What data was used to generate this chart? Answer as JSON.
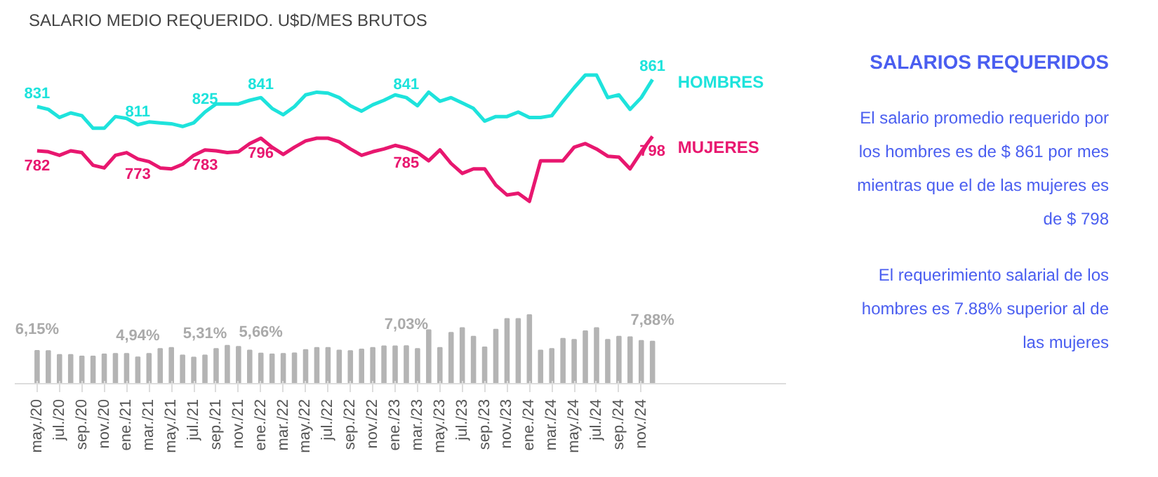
{
  "chart_data": [
    {
      "type": "line",
      "title": "SALARIO MEDIO REQUERIDO. U$D/MES BRUTOS",
      "tick_labels": false,
      "grid": false,
      "marker": "none",
      "line_style": "solid",
      "series": [
        {
          "name": "HOMBRES",
          "color": "#1ee3dc",
          "values": [
            831,
            828,
            819,
            824,
            821,
            807,
            807,
            820,
            818,
            811,
            814,
            813,
            812,
            809,
            813,
            825,
            834,
            834,
            834,
            838,
            841,
            829,
            822,
            831,
            844,
            847,
            846,
            841,
            832,
            826,
            833,
            838,
            844,
            841,
            832,
            847,
            837,
            841,
            835,
            829,
            815,
            820,
            820,
            825,
            819,
            819,
            821,
            837,
            852,
            866,
            866,
            841,
            844,
            828,
            841,
            861
          ],
          "value_labels": [
            "831",
            null,
            null,
            null,
            null,
            null,
            null,
            null,
            null,
            "811",
            null,
            null,
            null,
            null,
            null,
            "825",
            null,
            null,
            null,
            null,
            "841",
            null,
            null,
            null,
            null,
            null,
            null,
            null,
            null,
            null,
            null,
            null,
            null,
            "841",
            null,
            null,
            null,
            null,
            null,
            null,
            null,
            null,
            null,
            null,
            null,
            null,
            null,
            null,
            null,
            null,
            null,
            null,
            null,
            null,
            null,
            "861"
          ]
        },
        {
          "name": "MUJERES",
          "color": "#e8176f",
          "values": [
            782,
            781,
            777,
            782,
            780,
            766,
            763,
            777,
            780,
            773,
            770,
            763,
            762,
            767,
            777,
            783,
            782,
            780,
            781,
            790,
            796,
            786,
            778,
            786,
            793,
            796,
            796,
            792,
            784,
            777,
            781,
            784,
            788,
            785,
            780,
            771,
            783,
            768,
            757,
            762,
            762,
            744,
            733,
            735,
            726,
            771,
            771,
            771,
            786,
            790,
            784,
            776,
            775,
            762,
            781,
            798
          ],
          "value_labels": [
            "782",
            null,
            null,
            null,
            null,
            null,
            null,
            null,
            null,
            "773",
            null,
            null,
            null,
            null,
            null,
            "783",
            null,
            null,
            null,
            null,
            "796",
            null,
            null,
            null,
            null,
            null,
            null,
            null,
            null,
            null,
            null,
            null,
            null,
            "785",
            null,
            null,
            null,
            null,
            null,
            null,
            null,
            null,
            null,
            null,
            null,
            null,
            null,
            null,
            null,
            null,
            null,
            null,
            null,
            null,
            null,
            "798"
          ]
        }
      ]
    },
    {
      "type": "bar",
      "grid": false,
      "tick_labels": "x",
      "categories": [
        "may./20",
        null,
        "jul./20",
        null,
        "sep./20",
        null,
        "nov./20",
        null,
        "ene./21",
        null,
        "mar./21",
        null,
        "may./21",
        null,
        "jul./21",
        null,
        "sep./21",
        null,
        "nov./21",
        null,
        "ene./22",
        null,
        "mar./22",
        null,
        "may./22",
        null,
        "jul./22",
        null,
        "sep./22",
        null,
        "nov./22",
        null,
        "ene./23",
        null,
        "mar./23",
        null,
        "may./23",
        null,
        "jul./23",
        null,
        "sep./23",
        null,
        "nov./23",
        null,
        "ene./24",
        null,
        "mar./24",
        null,
        "may./24",
        null,
        "jul./24",
        null,
        "sep./24",
        null,
        "nov./24",
        null
      ],
      "series": [
        {
          "color": "#b4b4b4",
          "values": [
            6.15,
            6.1,
            5.4,
            5.4,
            5.1,
            5.1,
            5.5,
            5.6,
            5.6,
            4.94,
            5.6,
            6.5,
            6.7,
            5.3,
            4.9,
            5.31,
            6.5,
            7.1,
            6.9,
            6.2,
            5.66,
            5.5,
            5.6,
            5.7,
            6.3,
            6.7,
            6.7,
            6.2,
            6.1,
            6.4,
            6.7,
            7.0,
            7.0,
            7.03,
            6.5,
            10.0,
            6.7,
            9.5,
            10.4,
            8.8,
            6.8,
            10.1,
            12.1,
            12.1,
            12.8,
            6.2,
            6.5,
            8.4,
            8.2,
            9.8,
            10.4,
            8.2,
            8.8,
            8.7,
            8.0,
            7.88
          ],
          "value_labels": [
            "6,15%",
            null,
            null,
            null,
            null,
            null,
            null,
            null,
            null,
            "4,94%",
            null,
            null,
            null,
            null,
            null,
            "5,31%",
            null,
            null,
            null,
            null,
            "5,66%",
            null,
            null,
            null,
            null,
            null,
            null,
            null,
            null,
            null,
            null,
            null,
            null,
            "7,03%",
            null,
            null,
            null,
            null,
            null,
            null,
            null,
            null,
            null,
            null,
            null,
            null,
            null,
            null,
            null,
            null,
            null,
            null,
            null,
            null,
            null,
            "7,88%"
          ]
        }
      ]
    },
    {
      "type": "other",
      "title": "SALARIOS REQUERIDOS",
      "annotations": [
        "El salario promedio requerido por los hombres es de $ 861 por mes mientras que el de las mujeres es de $ 798",
        "El requerimiento salarial de los hombres es 7.88% superior al de las mujeres"
      ]
    }
  ]
}
